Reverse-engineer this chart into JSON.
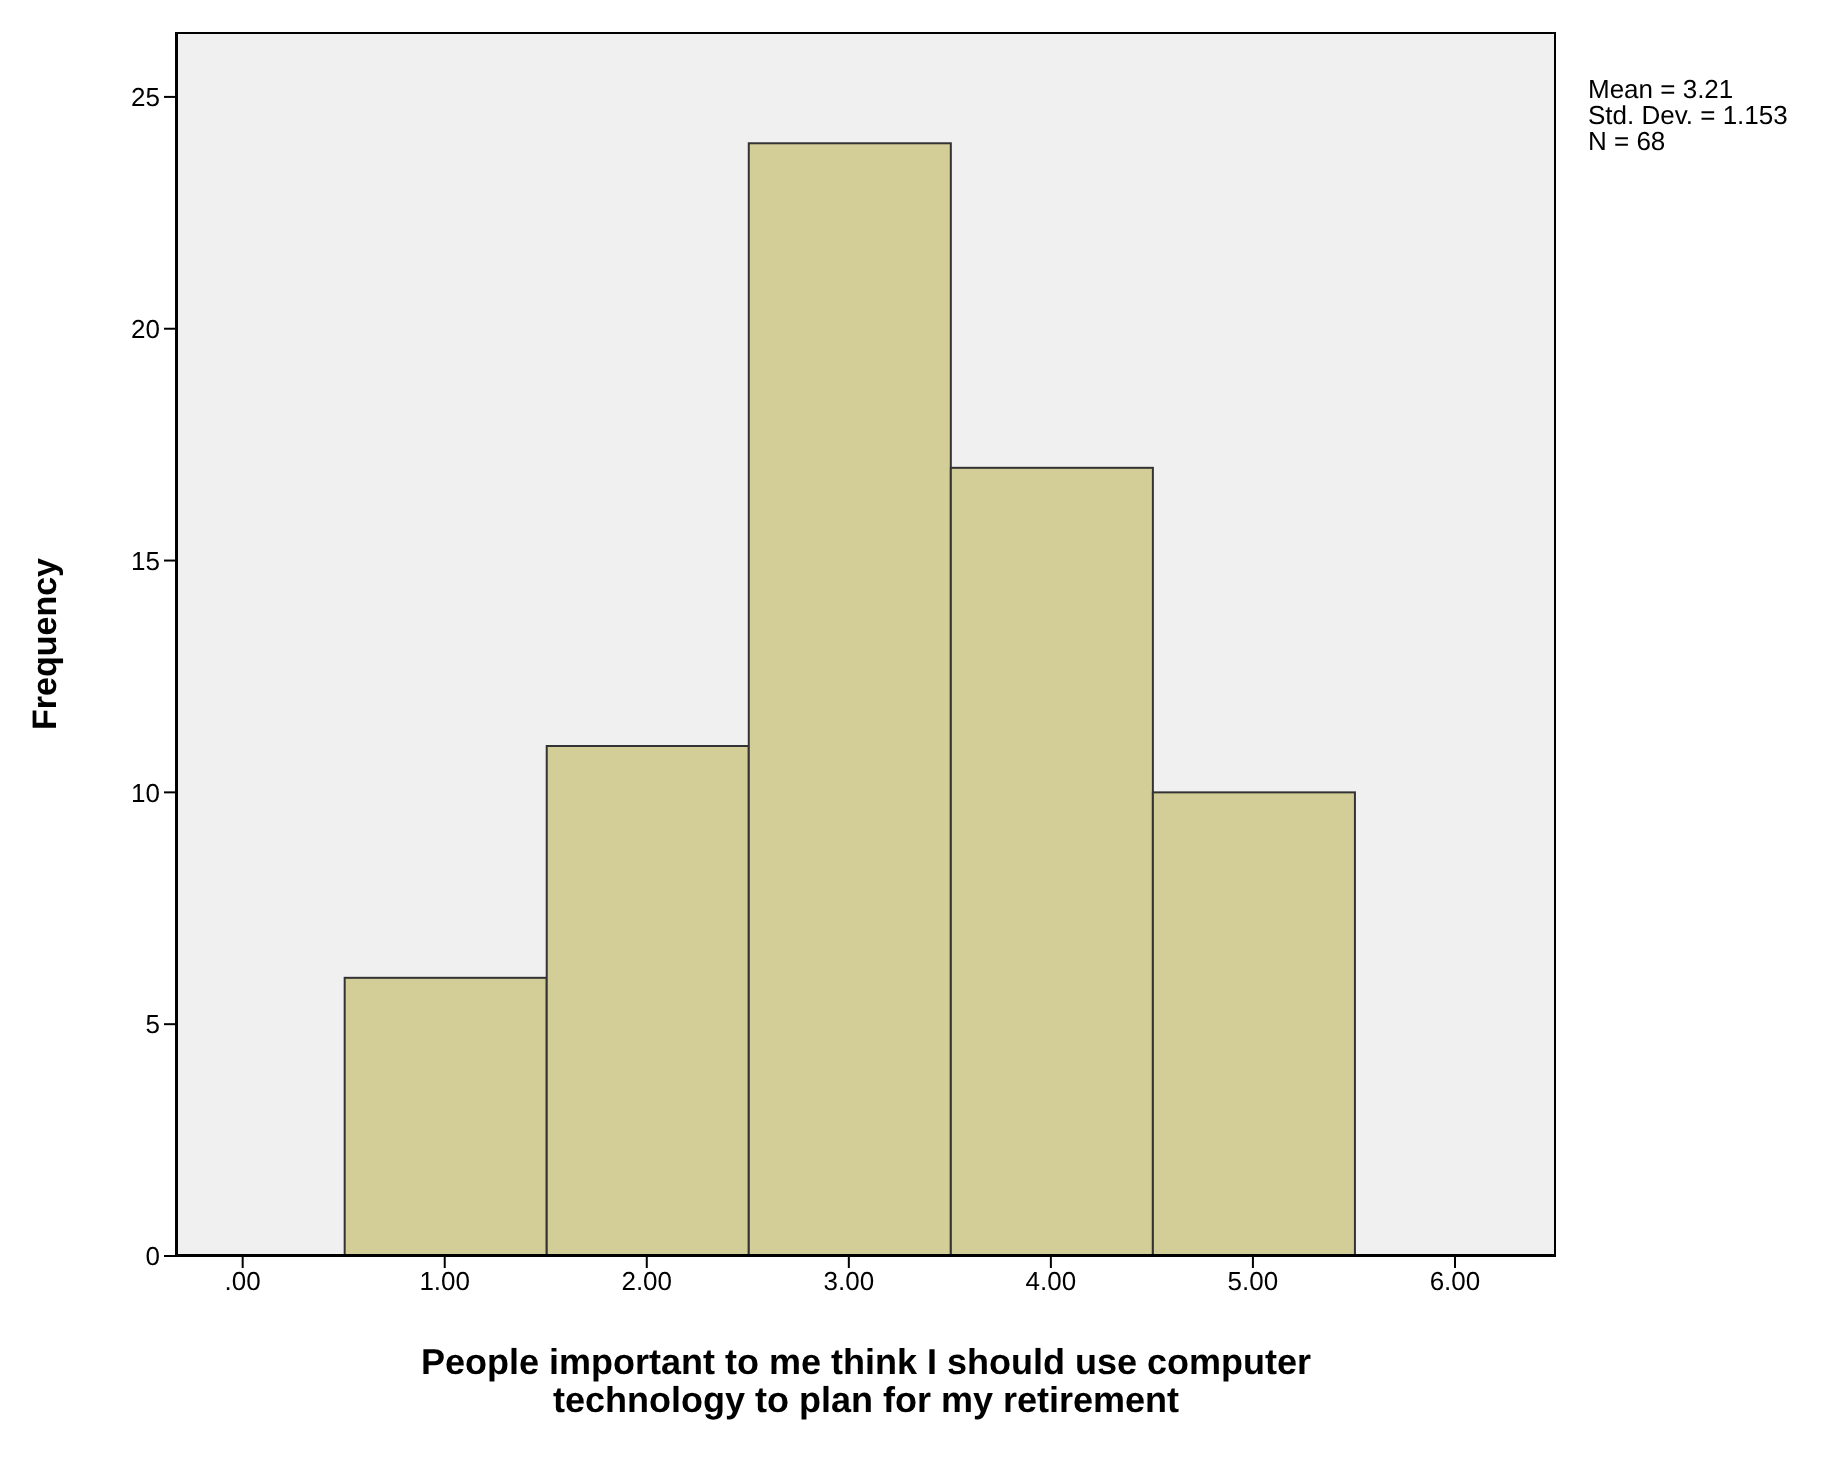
{
  "chart_data": {
    "type": "histogram",
    "xlabel": "People important to me think I should use computer technology to plan for my retirement",
    "ylabel": "Frequency",
    "bins": [
      0.5,
      1.5,
      2.5,
      3.5,
      4.5,
      5.5
    ],
    "values": [
      6,
      11,
      24,
      17,
      10
    ],
    "color": "#d3ce97",
    "xlim": [
      -0.33,
      6.5
    ],
    "xticks": [
      {
        "value": 0,
        "label": ".00"
      },
      {
        "value": 1,
        "label": "1.00"
      },
      {
        "value": 2,
        "label": "2.00"
      },
      {
        "value": 3,
        "label": "3.00"
      },
      {
        "value": 4,
        "label": "4.00"
      },
      {
        "value": 5,
        "label": "5.00"
      },
      {
        "value": 6,
        "label": "6.00"
      }
    ],
    "ylim": [
      0,
      26.4
    ],
    "yticks": [
      0,
      5,
      10,
      15,
      20,
      25
    ],
    "annotations": [
      "Mean = 3.21",
      "Std. Dev. = 1.153",
      "N = 68"
    ],
    "grid": false,
    "legend": false
  }
}
